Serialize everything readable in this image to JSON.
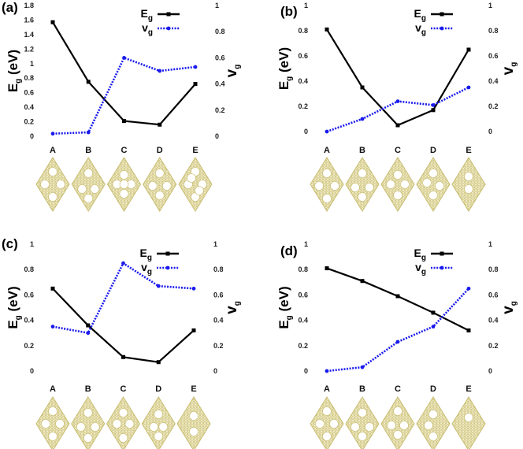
{
  "colors": {
    "eg_line": "#000000",
    "vg_line": "#1a1aee",
    "lattice_stroke": "#c9bd72",
    "lattice_fill": "#f2eecd",
    "hole": "#ffffff"
  },
  "chart_data": [
    {
      "type": "line",
      "panel_label": "(a)",
      "categories": [
        "A",
        "B",
        "C",
        "D",
        "E"
      ],
      "ylabel": "E",
      "ylabel_sub": "g",
      "ylabel_unit": " (eV)",
      "y2label": "v",
      "y2label_sub": "g",
      "ylim": [
        0,
        1.8
      ],
      "yticks": [
        "0",
        "0.2",
        "0.4",
        "0.6",
        "0.8",
        "1",
        "1.2",
        "1.4",
        "1.6",
        "1.8"
      ],
      "y2lim": [
        0,
        1
      ],
      "y2ticks": [
        "0",
        "0.2",
        "0.4",
        "0.6",
        "0.8",
        "1"
      ],
      "legend": [
        {
          "name": "E",
          "sub": "g"
        },
        {
          "name": "v",
          "sub": "g"
        }
      ],
      "series": [
        {
          "name": "Eg",
          "axis": "left",
          "style": "solid",
          "values": [
            1.57,
            0.75,
            0.21,
            0.16,
            0.72
          ]
        },
        {
          "name": "vg",
          "axis": "right",
          "style": "dotted",
          "values": [
            0.02,
            0.03,
            0.6,
            0.5,
            0.53
          ]
        }
      ]
    },
    {
      "type": "line",
      "panel_label": "(b)",
      "categories": [
        "A",
        "B",
        "C",
        "D",
        "E"
      ],
      "ylabel": "E",
      "ylabel_sub": "g",
      "ylabel_unit": " (eV)",
      "y2label": "v",
      "y2label_sub": "g",
      "ylim": [
        0,
        1
      ],
      "yticks": [
        "0",
        "0.2",
        "0.4",
        "0.6",
        "0.8",
        "1"
      ],
      "y2lim": [
        0,
        1
      ],
      "y2ticks": [
        "0",
        "0.2",
        "0.4",
        "0.6",
        "0.8",
        "1"
      ],
      "legend": [
        {
          "name": "E",
          "sub": "g"
        },
        {
          "name": "v",
          "sub": "g"
        }
      ],
      "series": [
        {
          "name": "Eg",
          "axis": "left",
          "style": "solid",
          "values": [
            0.81,
            0.35,
            0.05,
            0.17,
            0.65
          ]
        },
        {
          "name": "vg",
          "axis": "right",
          "style": "dotted",
          "values": [
            0.0,
            0.1,
            0.24,
            0.21,
            0.35
          ]
        }
      ]
    },
    {
      "type": "line",
      "panel_label": "(c)",
      "categories": [
        "A",
        "B",
        "C",
        "D",
        "E"
      ],
      "ylabel": "E",
      "ylabel_sub": "g",
      "ylabel_unit": " (eV)",
      "y2label": "v",
      "y2label_sub": "g",
      "ylim": [
        0,
        1
      ],
      "yticks": [
        "0",
        "0.2",
        "0.4",
        "0.6",
        "0.8",
        "1"
      ],
      "y2lim": [
        0,
        1
      ],
      "y2ticks": [
        "0",
        "0.2",
        "0.4",
        "0.6",
        "0.8",
        "1"
      ],
      "legend": [
        {
          "name": "E",
          "sub": "g"
        },
        {
          "name": "v",
          "sub": "g"
        }
      ],
      "series": [
        {
          "name": "Eg",
          "axis": "left",
          "style": "solid",
          "values": [
            0.65,
            0.36,
            0.11,
            0.07,
            0.32
          ]
        },
        {
          "name": "vg",
          "axis": "right",
          "style": "dotted",
          "values": [
            0.35,
            0.3,
            0.85,
            0.67,
            0.65
          ]
        }
      ]
    },
    {
      "type": "line",
      "panel_label": "(d)",
      "categories": [
        "A",
        "B",
        "C",
        "D",
        "E"
      ],
      "ylabel": "E",
      "ylabel_sub": "g",
      "ylabel_unit": " (eV)",
      "y2label": "v",
      "y2label_sub": "g",
      "ylim": [
        0,
        1
      ],
      "yticks": [
        "0",
        "0.2",
        "0.4",
        "0.6",
        "0.8",
        "1"
      ],
      "y2lim": [
        0,
        1
      ],
      "y2ticks": [
        "0",
        "0.2",
        "0.4",
        "0.6",
        "0.8",
        "1"
      ],
      "legend": [
        {
          "name": "E",
          "sub": "g"
        },
        {
          "name": "v",
          "sub": "g"
        }
      ],
      "series": [
        {
          "name": "Eg",
          "axis": "left",
          "style": "solid",
          "values": [
            0.81,
            0.71,
            0.59,
            0.46,
            0.32
          ]
        },
        {
          "name": "vg",
          "axis": "right",
          "style": "dotted",
          "values": [
            0.0,
            0.03,
            0.23,
            0.35,
            0.65
          ]
        }
      ]
    }
  ]
}
